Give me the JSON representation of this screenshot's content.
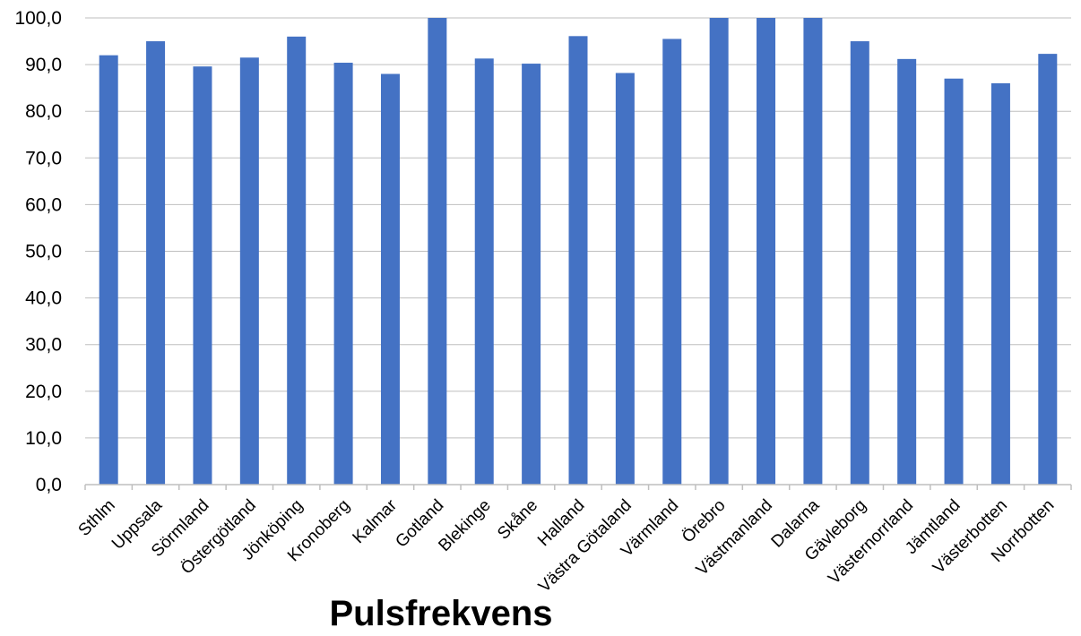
{
  "chart_data": {
    "type": "bar",
    "title": "Pulsfrekvens",
    "xlabel": "",
    "ylabel": "",
    "categories": [
      "Sthlm",
      "Uppsala",
      "Sörmland",
      "Östergötland",
      "Jönköping",
      "Kronoberg",
      "Kalmar",
      "Gotland",
      "Blekinge",
      "Skåne",
      "Halland",
      "Västra Götaland",
      "Värmland",
      "Örebro",
      "Västmanland",
      "Dalarna",
      "Gävleborg",
      "Västernorrland",
      "Jämtland",
      "Västerbotten",
      "Norrbotten"
    ],
    "values": [
      92.0,
      95.0,
      89.6,
      91.5,
      96.0,
      90.4,
      88.0,
      100.0,
      91.3,
      90.2,
      96.1,
      88.2,
      95.5,
      100.0,
      100.0,
      100.0,
      95.0,
      91.2,
      87.0,
      86.0,
      92.3
    ],
    "ylim": [
      0,
      100
    ],
    "yticks": [
      "0,0",
      "10,0",
      "20,0",
      "30,0",
      "40,0",
      "50,0",
      "60,0",
      "70,0",
      "80,0",
      "90,0",
      "100,0"
    ],
    "grid": true,
    "legend": "none",
    "bar_color": "#4472C4",
    "grid_color": "#BFBFBF",
    "axis_color": "#BFBFBF"
  }
}
